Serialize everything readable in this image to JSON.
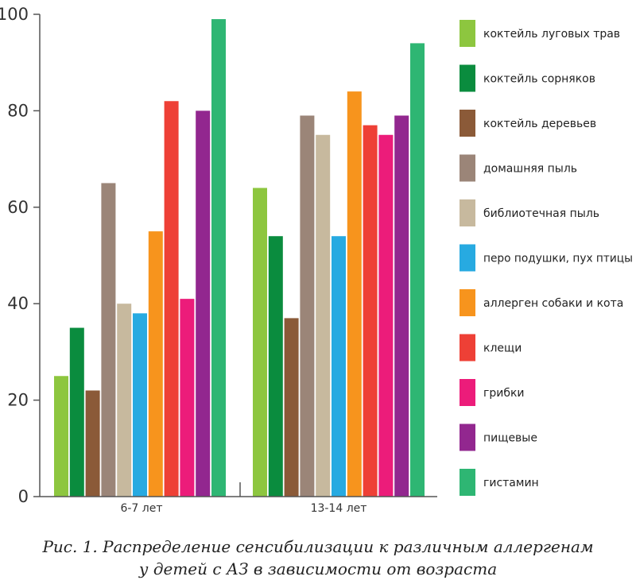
{
  "chart_data": {
    "type": "bar",
    "categories": [
      "6-7 лет",
      "13-14 лет"
    ],
    "series": [
      {
        "name": "коктейль луговых трав",
        "color": "#8dc63f",
        "values": [
          25,
          64
        ]
      },
      {
        "name": "коктейль сорняков",
        "color": "#0a8c3e",
        "values": [
          35,
          54
        ]
      },
      {
        "name": "коктейль деревьев",
        "color": "#8b5a38",
        "values": [
          22,
          37
        ]
      },
      {
        "name": "домашняя пыль",
        "color": "#9b8578",
        "values": [
          65,
          79
        ]
      },
      {
        "name": "библиотечная пыль",
        "color": "#c7b99e",
        "values": [
          40,
          75
        ]
      },
      {
        "name": "перо подушки, пух птицы",
        "color": "#27aae1",
        "values": [
          38,
          54
        ]
      },
      {
        "name": "аллерген собаки и кота",
        "color": "#f7941d",
        "values": [
          55,
          84
        ]
      },
      {
        "name": "клещи",
        "color": "#ee4036",
        "values": [
          82,
          77
        ]
      },
      {
        "name": "грибки",
        "color": "#ec1c7a",
        "values": [
          41,
          75
        ]
      },
      {
        "name": "пищевые",
        "color": "#92278f",
        "values": [
          80,
          79
        ]
      },
      {
        "name": "гистамин",
        "color": "#2eb673",
        "values": [
          99,
          94
        ]
      }
    ],
    "yticks": [
      0,
      20,
      40,
      60,
      80,
      100
    ],
    "ylim": [
      0,
      100
    ],
    "grid": false,
    "legend_position": "right"
  },
  "caption": {
    "line1": "Рис. 1. Распределение сенсибилизации к различным аллергенам",
    "line2": "у детей с АЗ в зависимости от возраста"
  }
}
